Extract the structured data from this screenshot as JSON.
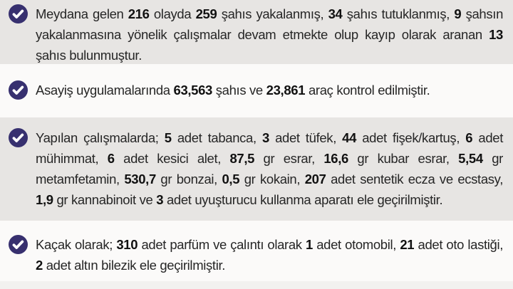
{
  "theme": {
    "row_gray": "#e7e5e3",
    "row_white": "#fbfaf9",
    "text_color": "#262626",
    "number_color": "#111111",
    "icon_color": "#37306f",
    "check_color": "#ffffff"
  },
  "icons": {
    "bullet_icon": "check-circle"
  },
  "bullets": [
    {
      "shade": "gray",
      "segments": [
        {
          "t": "Meydana gelen ",
          "b": false
        },
        {
          "t": "216",
          "b": true
        },
        {
          "t": " olayda ",
          "b": false
        },
        {
          "t": "259",
          "b": true
        },
        {
          "t": " şahıs yakalanmış, ",
          "b": false
        },
        {
          "t": "34",
          "b": true
        },
        {
          "t": " şahıs tutuklanmış, ",
          "b": false
        },
        {
          "t": "9",
          "b": true
        },
        {
          "t": " şahsın yakalanmasına yönelik çalışmalar devam etmekte olup kayıp olarak aranan ",
          "b": false
        },
        {
          "t": "13",
          "b": true
        },
        {
          "t": " şahıs bulunmuştur.",
          "b": false
        }
      ]
    },
    {
      "shade": "white",
      "segments": [
        {
          "t": "Asayiş uygulamalarında ",
          "b": false
        },
        {
          "t": "63,563",
          "b": true
        },
        {
          "t": " şahıs ve ",
          "b": false
        },
        {
          "t": "23,861",
          "b": true
        },
        {
          "t": " araç kontrol edilmiştir.",
          "b": false
        }
      ]
    },
    {
      "shade": "gray",
      "segments": [
        {
          "t": "Yapılan çalışmalarda; ",
          "b": false
        },
        {
          "t": "5",
          "b": true
        },
        {
          "t": " adet tabanca, ",
          "b": false
        },
        {
          "t": "3",
          "b": true
        },
        {
          "t": " adet tüfek, ",
          "b": false
        },
        {
          "t": "44",
          "b": true
        },
        {
          "t": " adet fişek/kartuş, ",
          "b": false
        },
        {
          "t": "6",
          "b": true
        },
        {
          "t": " adet mühimmat, ",
          "b": false
        },
        {
          "t": "6",
          "b": true
        },
        {
          "t": " adet kesici alet, ",
          "b": false
        },
        {
          "t": "87,5",
          "b": true
        },
        {
          "t": " gr esrar, ",
          "b": false
        },
        {
          "t": "16,6",
          "b": true
        },
        {
          "t": " gr kubar esrar, ",
          "b": false
        },
        {
          "t": "5,54",
          "b": true
        },
        {
          "t": " gr metamfetamin, ",
          "b": false
        },
        {
          "t": "530,7",
          "b": true
        },
        {
          "t": " gr bonzai, ",
          "b": false
        },
        {
          "t": "0,5",
          "b": true
        },
        {
          "t": " gr kokain, ",
          "b": false
        },
        {
          "t": "207",
          "b": true
        },
        {
          "t": " adet sentetik ecza ve ecstasy, ",
          "b": false
        },
        {
          "t": "1,9",
          "b": true
        },
        {
          "t": " gr kannabinoit ve ",
          "b": false
        },
        {
          "t": "3",
          "b": true
        },
        {
          "t": " adet uyuşturucu kullanma aparatı ele geçirilmiştir.",
          "b": false
        }
      ]
    },
    {
      "shade": "white",
      "segments": [
        {
          "t": "Kaçak olarak; ",
          "b": false
        },
        {
          "t": "310",
          "b": true
        },
        {
          "t": " adet parfüm ve çalıntı olarak ",
          "b": false
        },
        {
          "t": "1",
          "b": true
        },
        {
          "t": " adet otomobil, ",
          "b": false
        },
        {
          "t": "21",
          "b": true
        },
        {
          "t": " adet oto lastiği, ",
          "b": false
        },
        {
          "t": "2",
          "b": true
        },
        {
          "t": " adet altın bilezik ele geçirilmiştir.",
          "b": false
        }
      ]
    }
  ]
}
